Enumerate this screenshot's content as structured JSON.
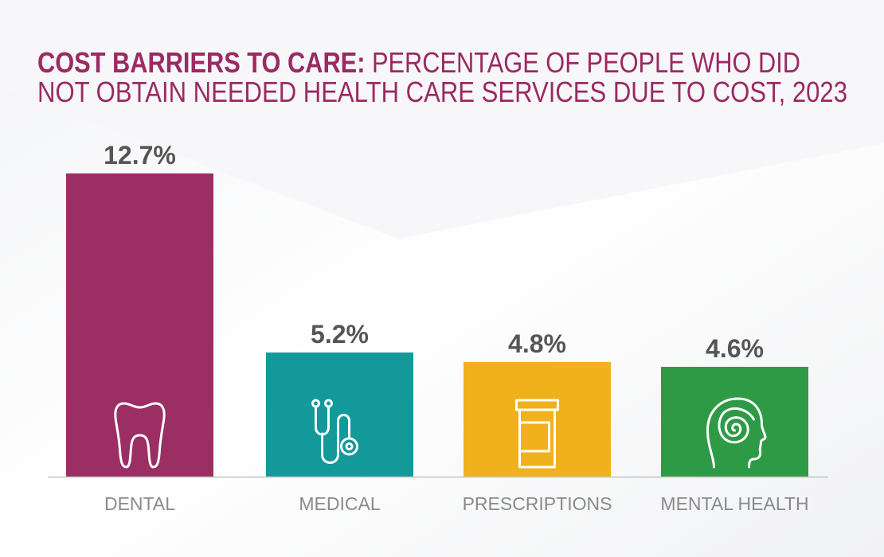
{
  "title": {
    "line1_bold": "COST BARRIERS TO CARE:",
    "line1_rest": " PERCENTAGE OF PEOPLE WHO DID",
    "line2": "NOT OBTAIN NEEDED HEALTH CARE SERVICES DUE TO COST, 2023"
  },
  "chart_data": {
    "type": "bar",
    "title": "COST BARRIERS TO CARE: PERCENTAGE OF PEOPLE WHO DID NOT OBTAIN NEEDED HEALTH CARE SERVICES DUE TO COST, 2023",
    "categories": [
      "DENTAL",
      "MEDICAL",
      "PRESCRIPTIONS",
      "MENTAL HEALTH"
    ],
    "values": [
      12.7,
      5.2,
      4.8,
      4.6
    ],
    "value_labels": [
      "12.7%",
      "5.2%",
      "4.8%",
      "4.6%"
    ],
    "colors": [
      "#9b2f63",
      "#13999a",
      "#f0b11d",
      "#2f9a46"
    ],
    "icons": [
      "tooth-icon",
      "stethoscope-icon",
      "pill-bottle-icon",
      "head-spiral-icon"
    ],
    "xlabel": "",
    "ylabel": "",
    "ylim": [
      0,
      12.7
    ],
    "grid": false,
    "legend": "none"
  }
}
